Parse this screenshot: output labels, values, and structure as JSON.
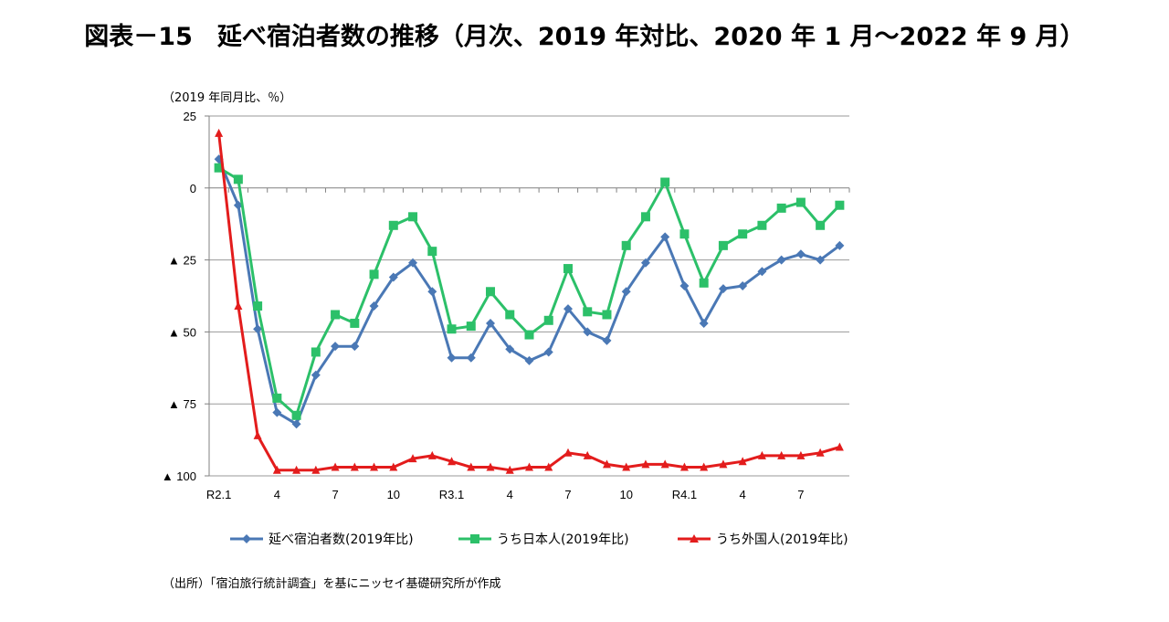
{
  "figure": {
    "title": "図表－15　延べ宿泊者数の推移（月次、2019 年対比、2020 年 1 月～2022 年 9 月）",
    "unit_label": "（2019 年同月比、％）",
    "source_note": "（出所）「宿泊旅行統計調査」を基にニッセイ基礎研究所が作成"
  },
  "chart_data": {
    "type": "line",
    "title": "図表－15　延べ宿泊者数の推移（月次、2019 年対比、2020 年 1 月～2022 年 9 月）",
    "ylabel": "（2019 年同月比、％）",
    "xlabel": "",
    "ylim": [
      -100,
      25
    ],
    "y_ticks": [
      {
        "value": 25,
        "label": "25"
      },
      {
        "value": 0,
        "label": "0"
      },
      {
        "value": -25,
        "label": "▲ 25"
      },
      {
        "value": -50,
        "label": "▲ 50"
      },
      {
        "value": -75,
        "label": "▲ 75"
      },
      {
        "value": -100,
        "label": "▲ 100"
      }
    ],
    "grid": true,
    "legend_position": "bottom",
    "categories": [
      "R2.1",
      "",
      "",
      "4",
      "",
      "",
      "7",
      "",
      "",
      "10",
      "",
      "",
      "R3.1",
      "",
      "",
      "4",
      "",
      "",
      "7",
      "",
      "",
      "10",
      "",
      "",
      "R4.1",
      "",
      "",
      "4",
      "",
      "",
      "7",
      "",
      ""
    ],
    "series": [
      {
        "name": "延べ宿泊者数(2019年比)",
        "color": "#4a78b5",
        "marker": "diamond",
        "values": [
          10,
          -6,
          -49,
          -78,
          -82,
          -65,
          -55,
          -55,
          -41,
          -31,
          -26,
          -36,
          -59,
          -59,
          -47,
          -56,
          -60,
          -57,
          -42,
          -50,
          -53,
          -36,
          -26,
          -17,
          -34,
          -47,
          -35,
          -34,
          -29,
          -25,
          -23,
          -25,
          -20
        ]
      },
      {
        "name": "うち日本人(2019年比)",
        "color": "#2cc069",
        "marker": "square",
        "values": [
          7,
          3,
          -41,
          -73,
          -79,
          -57,
          -44,
          -47,
          -30,
          -13,
          -10,
          -22,
          -49,
          -48,
          -36,
          -44,
          -51,
          -46,
          -28,
          -43,
          -44,
          -20,
          -10,
          2,
          -16,
          -33,
          -20,
          -16,
          -13,
          -7,
          -5,
          -13,
          -6
        ]
      },
      {
        "name": "うち外国人(2019年比)",
        "color": "#e31c1c",
        "marker": "triangle",
        "values": [
          19,
          -41,
          -86,
          -98,
          -98,
          -98,
          -97,
          -97,
          -97,
          -97,
          -94,
          -93,
          -95,
          -97,
          -97,
          -98,
          -97,
          -97,
          -92,
          -93,
          -96,
          -97,
          -96,
          -96,
          -97,
          -97,
          -96,
          -95,
          -93,
          -93,
          -93,
          -92,
          -90
        ]
      }
    ]
  }
}
